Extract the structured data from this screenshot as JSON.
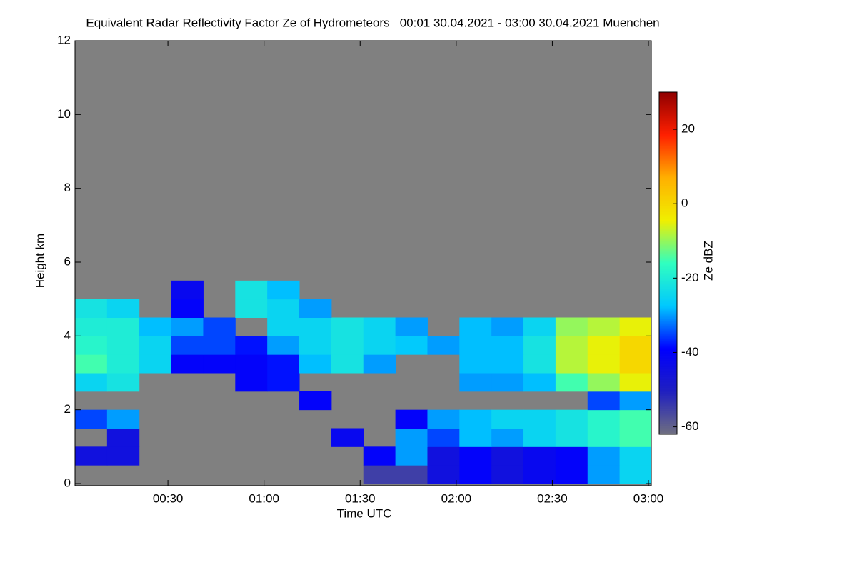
{
  "chart_data": {
    "type": "heatmap",
    "title": "Equivalent Radar Reflectivity Factor Ze of Hydrometeors   00:01 30.04.2021 - 03:00 30.04.2021 Muenchen",
    "x_label": "Time UTC",
    "y_label": "Height km",
    "colorbar_label": "Ze dBZ",
    "x": [
      6,
      16,
      26,
      36,
      46,
      56,
      66,
      76,
      86,
      96,
      106,
      116,
      126,
      136,
      146,
      156,
      166,
      176
    ],
    "y": [
      0.25,
      0.75,
      1.25,
      1.75,
      2.25,
      2.75,
      3.25,
      3.75,
      4.25,
      4.75,
      5.25
    ],
    "z": [
      [
        null,
        null,
        null,
        null,
        null,
        null,
        null,
        null,
        null,
        -55,
        -55,
        -45,
        -40,
        -45,
        -42,
        -40,
        -30,
        -25
      ],
      [
        -45,
        -45,
        null,
        null,
        null,
        null,
        null,
        null,
        null,
        -40,
        -30,
        -45,
        -40,
        -45,
        -42,
        -40,
        -30,
        -25
      ],
      [
        null,
        -45,
        null,
        null,
        null,
        null,
        null,
        null,
        -42,
        null,
        -30,
        -35,
        -28,
        -30,
        -25,
        -22,
        -18,
        -15
      ],
      [
        -35,
        -30,
        null,
        null,
        null,
        null,
        null,
        null,
        null,
        null,
        -40,
        -30,
        -28,
        -25,
        -25,
        -22,
        -18,
        -15
      ],
      [
        null,
        null,
        null,
        null,
        null,
        null,
        null,
        -40,
        null,
        null,
        null,
        null,
        null,
        null,
        null,
        null,
        -35,
        -30
      ],
      [
        -25,
        -22,
        null,
        null,
        null,
        -40,
        -38,
        null,
        null,
        null,
        null,
        null,
        -30,
        -30,
        -28,
        -15,
        -10,
        -5
      ],
      [
        -15,
        -20,
        -25,
        -40,
        -40,
        -40,
        -38,
        -28,
        -22,
        -30,
        null,
        null,
        -28,
        -28,
        -22,
        -8,
        -5,
        0
      ],
      [
        -18,
        -20,
        -25,
        -35,
        -35,
        -38,
        -30,
        -25,
        -22,
        -25,
        -27,
        -30,
        -28,
        -28,
        -22,
        -8,
        -5,
        0
      ],
      [
        -20,
        -20,
        -28,
        -30,
        -35,
        null,
        -25,
        -25,
        -22,
        -25,
        -30,
        null,
        -28,
        -30,
        -25,
        -10,
        -8,
        -5
      ],
      [
        -22,
        -25,
        null,
        -40,
        null,
        -22,
        -25,
        -30,
        null,
        null,
        null,
        null,
        null,
        null,
        null,
        null,
        null,
        null
      ],
      [
        null,
        null,
        null,
        -42,
        null,
        -22,
        -28,
        null,
        null,
        null,
        null,
        null,
        null,
        null,
        null,
        null,
        null,
        null
      ]
    ],
    "xlim": [
      1,
      180
    ],
    "ylim": [
      0,
      12
    ],
    "xticks": [
      {
        "value": 30,
        "label": "00:30"
      },
      {
        "value": 60,
        "label": "01:00"
      },
      {
        "value": 90,
        "label": "01:30"
      },
      {
        "value": 120,
        "label": "02:00"
      },
      {
        "value": 150,
        "label": "02:30"
      },
      {
        "value": 180,
        "label": "03:00"
      }
    ],
    "yticks": [
      0,
      2,
      4,
      6,
      8,
      10,
      12
    ],
    "clim": [
      -62,
      30
    ],
    "cticks": [
      -60,
      -40,
      -20,
      0,
      20
    ],
    "colorscale": [
      "#707080",
      "#2020c0",
      "#0000ff",
      "#00c8ff",
      "#30ffc0",
      "#f0f000",
      "#ffb000",
      "#ff2000",
      "#900000"
    ],
    "background": "#808080"
  }
}
